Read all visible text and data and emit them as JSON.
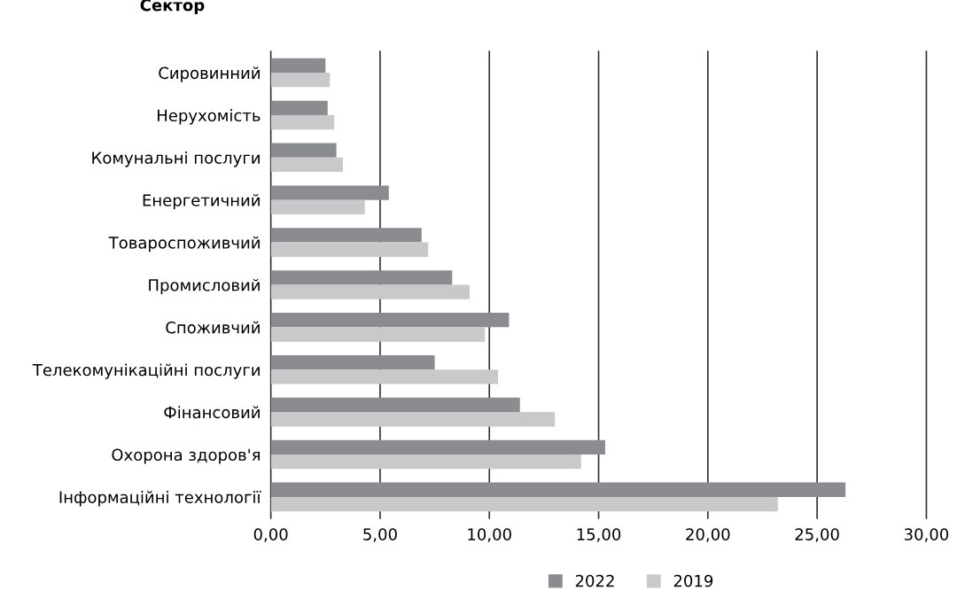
{
  "chart_data": {
    "type": "bar",
    "orientation": "horizontal",
    "ylabel": "Сектор",
    "categories": [
      "Сировинний",
      "Нерухомість",
      "Комунальні послуги",
      "Енергетичний",
      "Товароспоживчий",
      "Промисловий",
      "Споживчий",
      "Телекомунікаційні послуги",
      "Фінансовий",
      "Охорона здоров'я",
      "Інформаційні технології"
    ],
    "series": [
      {
        "name": "2022",
        "color": "#8b8c90",
        "values": [
          2.5,
          2.6,
          3.0,
          5.4,
          6.9,
          8.3,
          10.9,
          7.5,
          11.4,
          15.3,
          26.3
        ]
      },
      {
        "name": "2019",
        "color": "#c8c9cb",
        "values": [
          2.7,
          2.9,
          3.3,
          4.3,
          7.2,
          9.1,
          9.8,
          10.4,
          13.0,
          14.2,
          23.2
        ]
      }
    ],
    "xlim": [
      0,
      30
    ],
    "xticks": [
      {
        "value": 0,
        "label": "0,00"
      },
      {
        "value": 5,
        "label": "5,00"
      },
      {
        "value": 10,
        "label": "10,00"
      },
      {
        "value": 15,
        "label": "15,00"
      },
      {
        "value": 20,
        "label": "20,00"
      },
      {
        "value": 25,
        "label": "25,00"
      },
      {
        "value": 30,
        "label": "30,00"
      }
    ],
    "grid": "x",
    "legend": "bottom"
  }
}
